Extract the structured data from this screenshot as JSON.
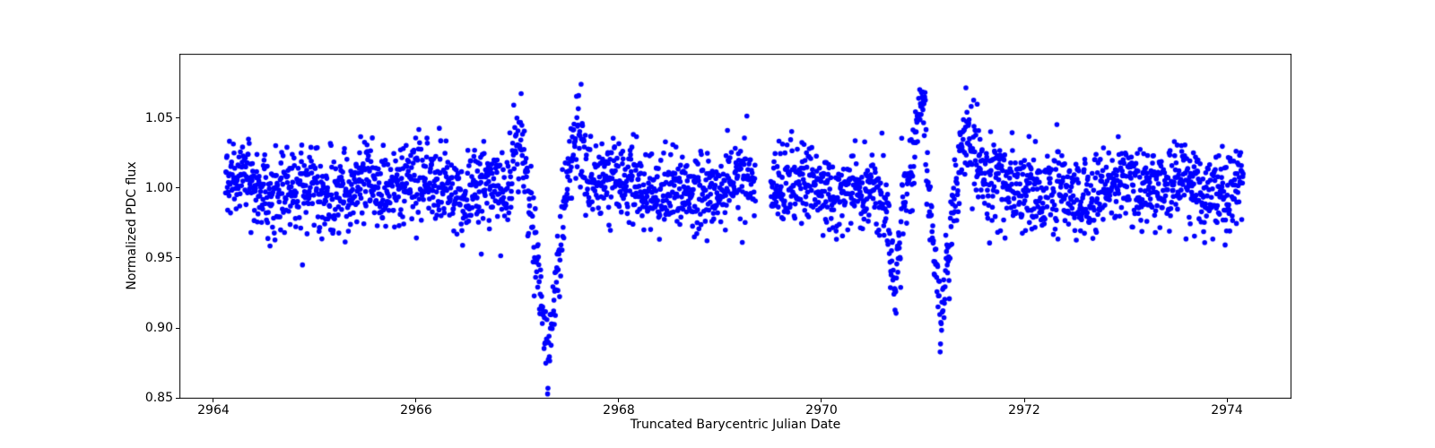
{
  "chart_data": {
    "type": "scatter",
    "title": "",
    "xlabel": "Truncated Barycentric Julian Date",
    "ylabel": "Normalized PDC flux",
    "xlim": [
      2963.664,
      2974.637
    ],
    "ylim": [
      0.84936,
      1.09615
    ],
    "xticks": [
      2964,
      2966,
      2968,
      2970,
      2972,
      2974
    ],
    "yticks": [
      "0.85",
      "0.90",
      "0.95",
      "1.00",
      "1.05"
    ],
    "grid": false,
    "legend": null,
    "background_color": "#ffffff",
    "axis_color": "#000000",
    "marker": {
      "color": "#0000ff",
      "radius_px": 2.8
    },
    "series_model": {
      "description": "Normalized PDC flux light curve sampled every ~5 min from TBJD 2964.12 to 2974.16; Gaussian noise about flux 1.0; two V-shaped transit dips near 2967.30 (bottom ~0.86) and 2971.18 (bottom ~0.90); brightening bumps flanking each dip; shallow dip near 2970.72 (~0.93); data gap 2969.35-2969.50.",
      "t_start": 2964.12,
      "t_end": 2974.16,
      "cadence_days": 0.00348,
      "baseline_flux": 1.0,
      "noise_sigma": 0.014,
      "outlier_fraction": 0.05,
      "outlier_sigma": 0.016,
      "gaps": [
        [
          2969.35,
          2969.5
        ]
      ],
      "sinusoids": [
        {
          "period_days": 0.62,
          "amplitude": 0.004,
          "phase": 1.3
        },
        {
          "period_days": 1.85,
          "amplitude": 0.0035,
          "phase": 0.4
        }
      ],
      "bumps": [
        {
          "center": 2967.0,
          "amplitude": 0.045,
          "sigma": 0.06
        },
        {
          "center": 2967.6,
          "amplitude": 0.042,
          "sigma": 0.055
        },
        {
          "center": 2970.72,
          "amplitude": -0.058,
          "sigma": 0.045
        },
        {
          "center": 2970.98,
          "amplitude": 0.055,
          "sigma": 0.05
        },
        {
          "center": 2971.43,
          "amplitude": 0.035,
          "sigma": 0.07
        }
      ],
      "transits": [
        {
          "center": 2967.3,
          "depth": 0.135,
          "half_width": 0.22,
          "shape_exp": 1.4
        },
        {
          "center": 2971.18,
          "depth": 0.103,
          "half_width": 0.17,
          "shape_exp": 1.3
        }
      ],
      "random_seed": 20
    }
  }
}
